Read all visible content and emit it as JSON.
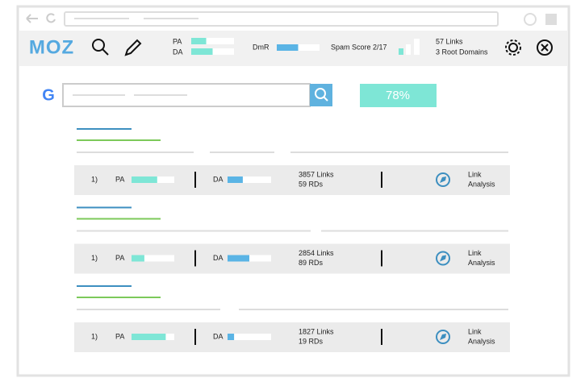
{
  "toolbar": {
    "logo": "MOZ",
    "pa_label": "PA",
    "da_label": "DA",
    "pa": 35,
    "da": 50,
    "dmr_label": "DmR",
    "dmr": 50,
    "spam_score": "Spam Score 2/17",
    "links": "57 Links",
    "root_domains": "3 Root Domains"
  },
  "search": {
    "score": "78%"
  },
  "results": [
    {
      "rank": "1)",
      "pa_label": "PA",
      "pa": 60,
      "da_label": "DA",
      "da": 35,
      "links": "3857 Links",
      "rds": "59 RDs",
      "action": [
        "Link",
        "Analysis"
      ]
    },
    {
      "rank": "1)",
      "pa_label": "PA",
      "pa": 30,
      "da_label": "DA",
      "da": 50,
      "links": "2854 Links",
      "rds": "89 RDs",
      "action": [
        "Link",
        "Analysis"
      ]
    },
    {
      "rank": "1)",
      "pa_label": "PA",
      "pa": 80,
      "da_label": "DA",
      "da": 15,
      "links": "1827 Links",
      "rds": "19 RDs",
      "action": [
        "Link",
        "Analysis"
      ]
    }
  ]
}
